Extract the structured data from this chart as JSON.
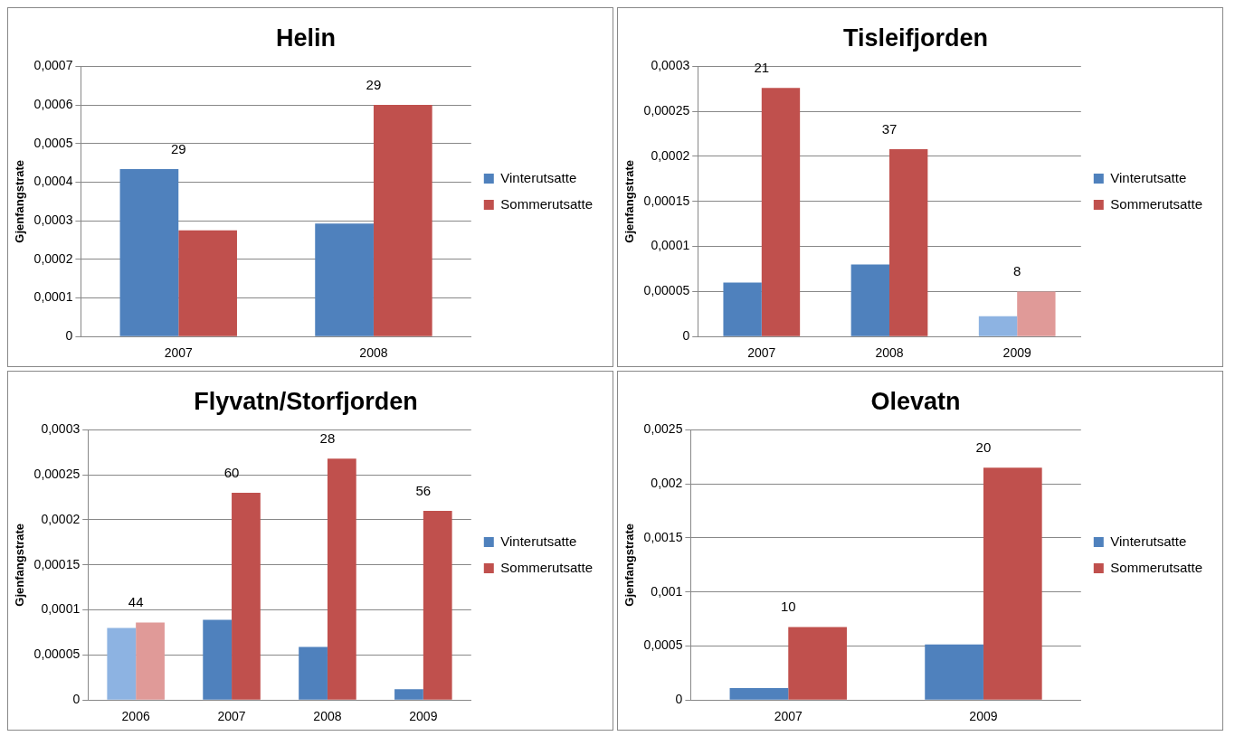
{
  "chart_data": [
    {
      "type": "bar",
      "title": "Helin",
      "ylabel": "Gjenfangstrate",
      "categories": [
        "2007",
        "2008"
      ],
      "series": [
        {
          "name": "Vinterutsatte",
          "color": "#4f81bd",
          "values": [
            0.000434,
            0.000293
          ]
        },
        {
          "name": "Sommerutsatte",
          "color": "#c0504d",
          "values": [
            0.000275,
            0.0006
          ]
        }
      ],
      "ylim": [
        0,
        0.0007
      ],
      "yticks": [
        {
          "value": 0,
          "label": "0"
        },
        {
          "value": 0.0001,
          "label": "0,0001"
        },
        {
          "value": 0.0002,
          "label": "0,0002"
        },
        {
          "value": 0.0003,
          "label": "0,0003"
        },
        {
          "value": 0.0004,
          "label": "0,0004"
        },
        {
          "value": 0.0005,
          "label": "0,0005"
        },
        {
          "value": 0.0006,
          "label": "0,0006"
        },
        {
          "value": 0.0007,
          "label": "0,0007"
        }
      ],
      "annotations": [
        {
          "text": "29",
          "x": "2007",
          "y": 0.000434
        },
        {
          "text": "29",
          "x": "2008",
          "y": 0.0006
        }
      ],
      "grid": "y",
      "legend": "right"
    },
    {
      "type": "bar",
      "title": "Tisleifjorden",
      "ylabel": "Gjenfangstrate",
      "categories": [
        "2007",
        "2008",
        "2009"
      ],
      "series": [
        {
          "name": "Vinterutsatte",
          "color": "#4f81bd",
          "colors": [
            "#4f81bd",
            "#4f81bd",
            "#8db3e2"
          ],
          "values": [
            6e-05,
            8e-05,
            2.25e-05
          ]
        },
        {
          "name": "Sommerutsatte",
          "color": "#c0504d",
          "colors": [
            "#c0504d",
            "#c0504d",
            "#e09a98"
          ],
          "values": [
            0.000276,
            0.000208,
            5e-05
          ]
        }
      ],
      "ylim": [
        0,
        0.0003
      ],
      "yticks": [
        {
          "value": 0,
          "label": "0"
        },
        {
          "value": 5e-05,
          "label": "0,00005"
        },
        {
          "value": 0.0001,
          "label": "0,0001"
        },
        {
          "value": 0.00015,
          "label": "0,00015"
        },
        {
          "value": 0.0002,
          "label": "0,0002"
        },
        {
          "value": 0.00025,
          "label": "0,00025"
        },
        {
          "value": 0.0003,
          "label": "0,0003"
        }
      ],
      "annotations": [
        {
          "text": "21",
          "x": "2007",
          "y": 0.000276
        },
        {
          "text": "37",
          "x": "2008",
          "y": 0.000208
        },
        {
          "text": "8",
          "x": "2009",
          "y": 5e-05
        }
      ],
      "grid": "y",
      "legend": "right"
    },
    {
      "type": "bar",
      "title": "Flyvatn/Storfjorden",
      "ylabel": "Gjenfangstrate",
      "categories": [
        "2006",
        "2007",
        "2008",
        "2009"
      ],
      "series": [
        {
          "name": "Vinterutsatte",
          "color": "#4f81bd",
          "colors": [
            "#8db3e2",
            "#4f81bd",
            "#4f81bd",
            "#4f81bd"
          ],
          "values": [
            8e-05,
            8.9e-05,
            5.9e-05,
            1.2e-05
          ]
        },
        {
          "name": "Sommerutsatte",
          "color": "#c0504d",
          "colors": [
            "#e09a98",
            "#c0504d",
            "#c0504d",
            "#c0504d"
          ],
          "values": [
            8.6e-05,
            0.00023,
            0.000268,
            0.00021
          ]
        }
      ],
      "ylim": [
        0,
        0.0003
      ],
      "yticks": [
        {
          "value": 0,
          "label": "0"
        },
        {
          "value": 5e-05,
          "label": "0,00005"
        },
        {
          "value": 0.0001,
          "label": "0,0001"
        },
        {
          "value": 0.00015,
          "label": "0,00015"
        },
        {
          "value": 0.0002,
          "label": "0,0002"
        },
        {
          "value": 0.00025,
          "label": "0,00025"
        },
        {
          "value": 0.0003,
          "label": "0,0003"
        }
      ],
      "annotations": [
        {
          "text": "44",
          "x": "2006",
          "y": 8.6e-05
        },
        {
          "text": "60",
          "x": "2007",
          "y": 0.00023
        },
        {
          "text": "28",
          "x": "2008",
          "y": 0.000268
        },
        {
          "text": "56",
          "x": "2009",
          "y": 0.00021
        }
      ],
      "grid": "y",
      "legend": "right"
    },
    {
      "type": "bar",
      "title": "Olevatn",
      "ylabel": "Gjenfangstrate",
      "categories": [
        "2007",
        "2009"
      ],
      "series": [
        {
          "name": "Vinterutsatte",
          "color": "#4f81bd",
          "values": [
            0.00011,
            0.000515
          ]
        },
        {
          "name": "Sommerutsatte",
          "color": "#c0504d",
          "values": [
            0.000675,
            0.00215
          ]
        }
      ],
      "ylim": [
        0,
        0.0025
      ],
      "yticks": [
        {
          "value": 0,
          "label": "0"
        },
        {
          "value": 0.0005,
          "label": "0,0005"
        },
        {
          "value": 0.001,
          "label": "0,001"
        },
        {
          "value": 0.0015,
          "label": "0,0015"
        },
        {
          "value": 0.002,
          "label": "0,002"
        },
        {
          "value": 0.0025,
          "label": "0,0025"
        }
      ],
      "annotations": [
        {
          "text": "10",
          "x": "2007",
          "y": 0.000675
        },
        {
          "text": "20",
          "x": "2009",
          "y": 0.00215
        }
      ],
      "grid": "y",
      "legend": "right"
    }
  ]
}
